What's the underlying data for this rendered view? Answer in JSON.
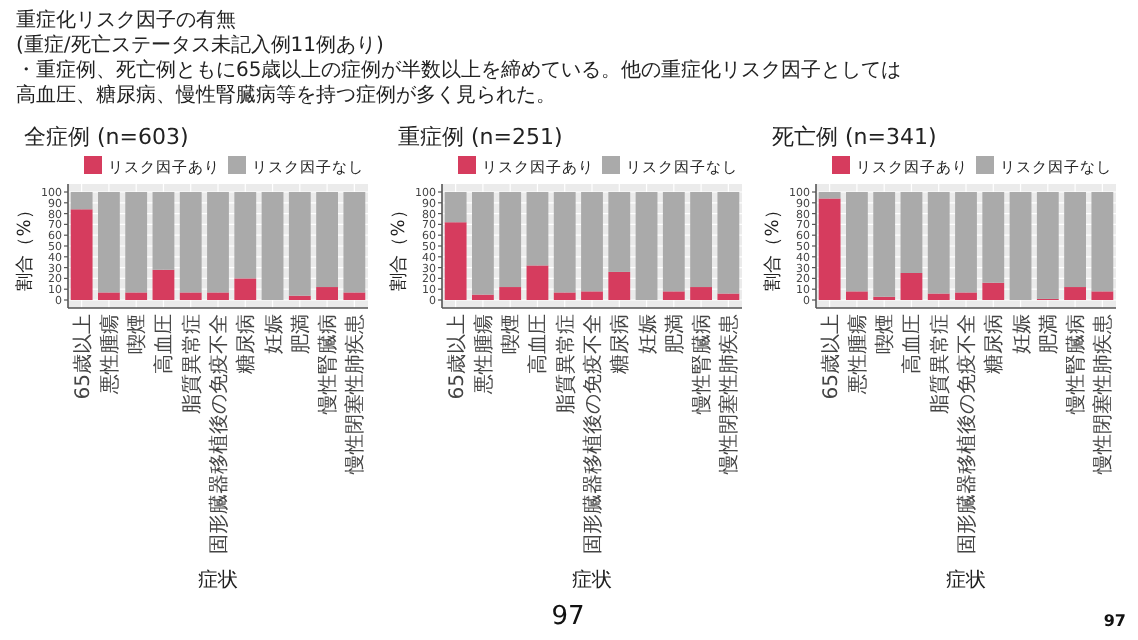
{
  "chart_data": [
    {
      "type": "other",
      "title": "重症化リスク因子の有無",
      "subtitle": "(重症/死亡ステータス未記入例11例あり)",
      "annotations": [
        "・重症例、死亡例ともに65歳以上の症例が半数以上を締めている。他の重症化リスク因子としては",
        "高血圧、糖尿病、慢性腎臓病等を持つ症例が多く見られた。",
        "97",
        "97"
      ]
    },
    {
      "type": "bar",
      "stacked": true,
      "title": "全症例 (n=603)",
      "xlabel": "症状",
      "ylabel": "割合（%）",
      "ylim": [
        0,
        100
      ],
      "yticks": [
        0,
        10,
        20,
        30,
        40,
        50,
        60,
        70,
        80,
        90,
        100
      ],
      "grid": true,
      "legend": "top",
      "categories": [
        "65歳以上",
        "悪性腫瘍",
        "喫煙",
        "高血圧",
        "脂質異常症",
        "固形臓器移植後の免疫不全",
        "糖尿病",
        "妊娠",
        "肥満",
        "慢性腎臓病",
        "慢性閉塞性肺疾患"
      ],
      "series": [
        {
          "name": "リスク因子あり",
          "color": "#d63c5e",
          "values": [
            84,
            7,
            7,
            28,
            7,
            7,
            20,
            0,
            4,
            12,
            7
          ]
        },
        {
          "name": "リスク因子なし",
          "color": "#aaaaaa",
          "values": [
            16,
            93,
            93,
            72,
            93,
            93,
            80,
            100,
            96,
            88,
            93
          ]
        }
      ]
    },
    {
      "type": "bar",
      "stacked": true,
      "title": "重症例 (n=251)",
      "xlabel": "症状",
      "ylabel": "割合（%）",
      "ylim": [
        0,
        100
      ],
      "yticks": [
        0,
        10,
        20,
        30,
        40,
        50,
        60,
        70,
        80,
        90,
        100
      ],
      "grid": true,
      "legend": "top",
      "categories": [
        "65歳以上",
        "悪性腫瘍",
        "喫煙",
        "高血圧",
        "脂質異常症",
        "固形臓器移植後の免疫不全",
        "糖尿病",
        "妊娠",
        "肥満",
        "慢性腎臓病",
        "慢性閉塞性肺疾患"
      ],
      "series": [
        {
          "name": "リスク因子あり",
          "color": "#d63c5e",
          "values": [
            72,
            5,
            12,
            32,
            7,
            8,
            26,
            0,
            8,
            12,
            6
          ]
        },
        {
          "name": "リスク因子なし",
          "color": "#aaaaaa",
          "values": [
            28,
            95,
            88,
            68,
            93,
            92,
            74,
            100,
            92,
            88,
            94
          ]
        }
      ]
    },
    {
      "type": "bar",
      "stacked": true,
      "title": "死亡例 (n=341)",
      "xlabel": "症状",
      "ylabel": "割合（%）",
      "ylim": [
        0,
        100
      ],
      "yticks": [
        0,
        10,
        20,
        30,
        40,
        50,
        60,
        70,
        80,
        90,
        100
      ],
      "grid": true,
      "legend": "top",
      "categories": [
        "65歳以上",
        "悪性腫瘍",
        "喫煙",
        "高血圧",
        "脂質異常症",
        "固形臓器移植後の免疫不全",
        "糖尿病",
        "妊娠",
        "肥満",
        "慢性腎臓病",
        "慢性閉塞性肺疾患"
      ],
      "series": [
        {
          "name": "リスク因子あり",
          "color": "#d63c5e",
          "values": [
            94,
            8,
            3,
            25,
            6,
            7,
            16,
            0,
            1,
            12,
            8
          ]
        },
        {
          "name": "リスク因子なし",
          "color": "#aaaaaa",
          "values": [
            6,
            92,
            97,
            75,
            94,
            93,
            84,
            100,
            99,
            88,
            92
          ]
        }
      ]
    }
  ]
}
